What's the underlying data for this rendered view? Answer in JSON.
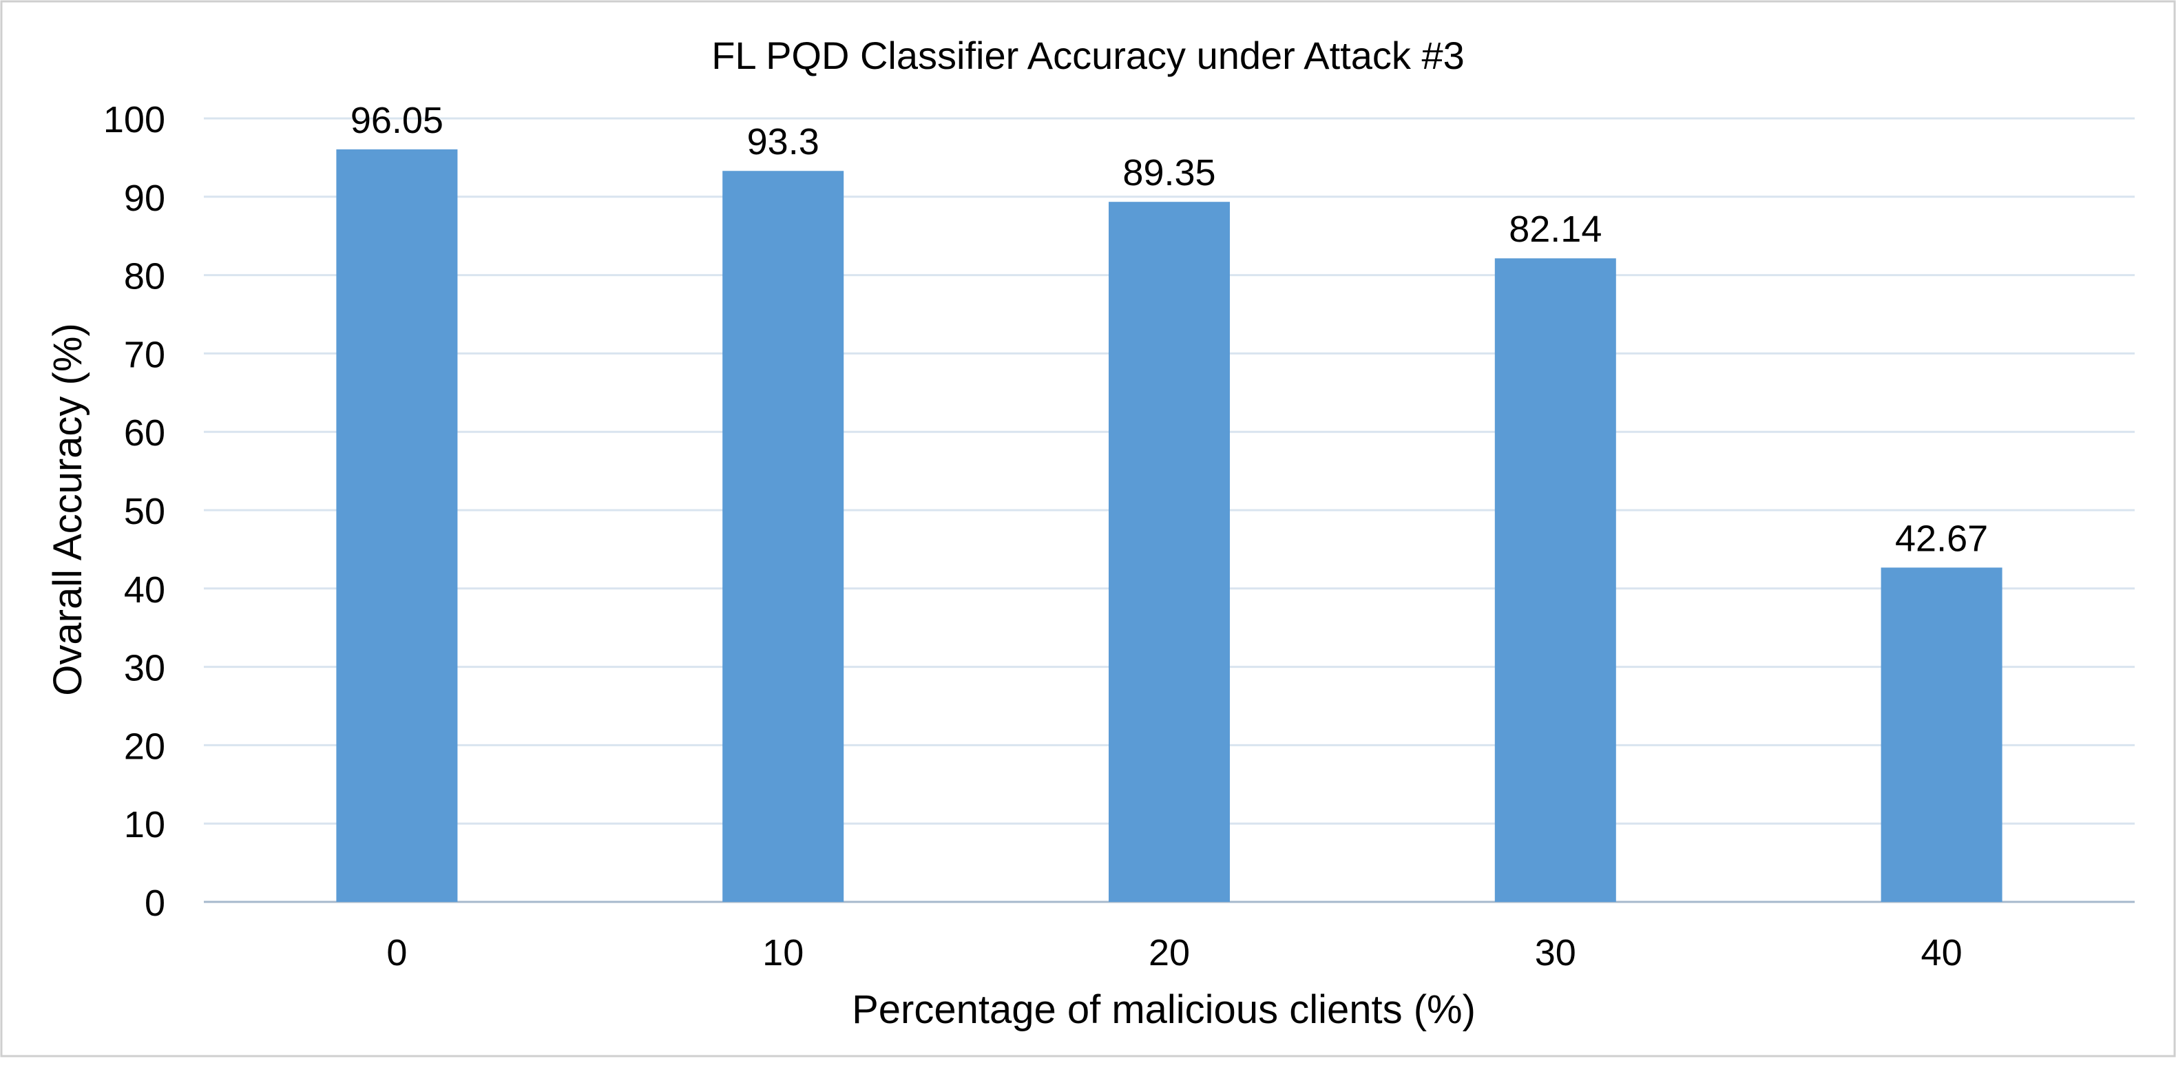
{
  "chart_data": {
    "type": "bar",
    "title": "FL PQD Classifier Accuracy under Attack #3",
    "xlabel": "Percentage of malicious clients (%)",
    "ylabel": "Ovarall Accuracy (%)",
    "categories": [
      "0",
      "10",
      "20",
      "30",
      "40"
    ],
    "values": [
      96.05,
      93.3,
      89.35,
      82.14,
      42.67
    ],
    "data_labels": [
      "96.05",
      "93.3",
      "89.35",
      "82.14",
      "42.67"
    ],
    "ylim": [
      0,
      100
    ],
    "yticks": [
      0,
      10,
      20,
      30,
      40,
      50,
      60,
      70,
      80,
      90,
      100
    ],
    "ytick_labels": [
      "0",
      "10",
      "20",
      "30",
      "40",
      "50",
      "60",
      "70",
      "80",
      "90",
      "100"
    ],
    "grid": true,
    "legend": "none",
    "bar_color": "#5b9bd5",
    "grid_color": "#d9e4ef",
    "axis_color": "#a6b9cc",
    "frame_color": "#cfcfcf"
  }
}
